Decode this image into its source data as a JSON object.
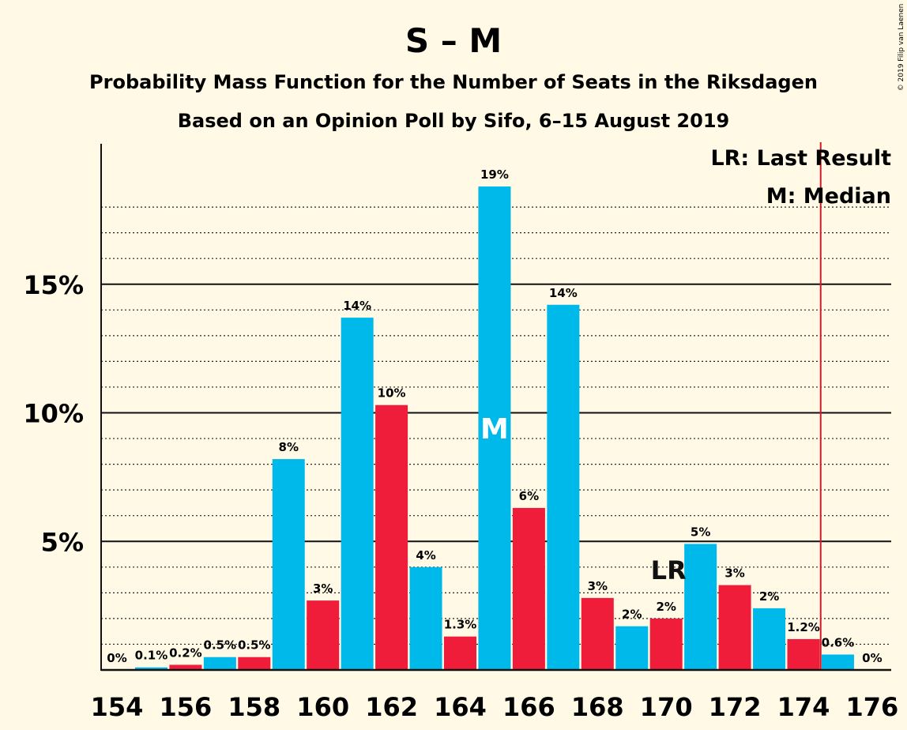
{
  "chart_data": {
    "type": "bar",
    "title": "S – M",
    "subtitle": "Probability Mass Function for the Number of Seats in the Riksdagen",
    "subtitle2": "Based on an Opinion Poll by Sifo, 6–15 August 2019",
    "copyright": "© 2019 Filip van Laenen",
    "x_ticks": [
      "154",
      "156",
      "158",
      "160",
      "162",
      "164",
      "166",
      "168",
      "170",
      "172",
      "174",
      "176"
    ],
    "y_ticks": [
      "5%",
      "10%",
      "15%"
    ],
    "ylim": [
      0,
      20.5
    ],
    "grid": "dotted minor every 1%, solid major every 5%",
    "bars": [
      {
        "seats": 154,
        "value": 0,
        "label": "0%"
      },
      {
        "seats": 155,
        "value": 0.1,
        "label": "0.1%"
      },
      {
        "seats": 156,
        "value": 0.2,
        "label": "0.2%"
      },
      {
        "seats": 157,
        "value": 0.5,
        "label": "0.5%"
      },
      {
        "seats": 158,
        "value": 0.5,
        "label": "0.5%"
      },
      {
        "seats": 159,
        "value": 8.2,
        "label": "8%"
      },
      {
        "seats": 160,
        "value": 2.7,
        "label": "3%"
      },
      {
        "seats": 161,
        "value": 13.7,
        "label": "14%"
      },
      {
        "seats": 162,
        "value": 10.3,
        "label": "10%"
      },
      {
        "seats": 163,
        "value": 4.0,
        "label": "4%"
      },
      {
        "seats": 164,
        "value": 1.3,
        "label": "1.3%"
      },
      {
        "seats": 165,
        "value": 18.8,
        "label": "19%"
      },
      {
        "seats": 166,
        "value": 6.3,
        "label": "6%"
      },
      {
        "seats": 167,
        "value": 14.2,
        "label": "14%"
      },
      {
        "seats": 168,
        "value": 2.8,
        "label": "3%"
      },
      {
        "seats": 169,
        "value": 1.7,
        "label": "2%"
      },
      {
        "seats": 170,
        "value": 2.0,
        "label": "2%"
      },
      {
        "seats": 171,
        "value": 4.9,
        "label": "5%"
      },
      {
        "seats": 172,
        "value": 3.3,
        "label": "3%"
      },
      {
        "seats": 173,
        "value": 2.4,
        "label": "2%"
      },
      {
        "seats": 174,
        "value": 1.2,
        "label": "1.2%"
      },
      {
        "seats": 175,
        "value": 0.6,
        "label": "0.6%"
      },
      {
        "seats": 176,
        "value": 0,
        "label": "0%"
      }
    ],
    "median": {
      "seats": 165,
      "label": "M"
    },
    "last_result": {
      "seats": 170,
      "label": "LR"
    },
    "majority_line_seats": 174.5,
    "legend": [
      "LR: Last Result",
      "M: Median"
    ],
    "legend_position": "top-right",
    "colors": {
      "odd": "#00b9eb",
      "even": "#ef1d3a",
      "majority_line": "#d11a2a",
      "background": "#fff9e5"
    }
  }
}
